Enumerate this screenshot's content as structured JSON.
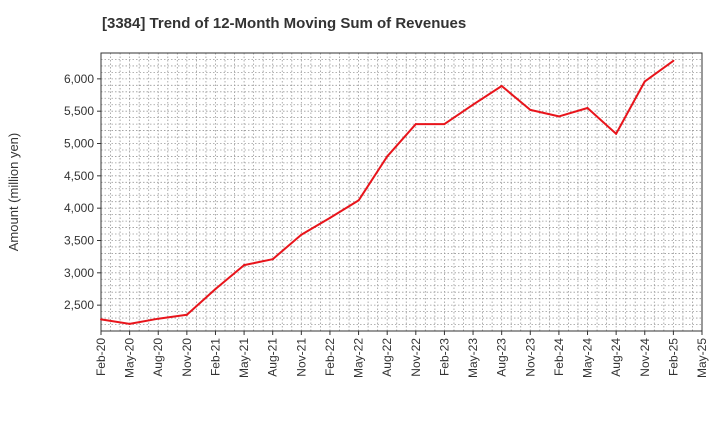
{
  "chart_data": {
    "type": "line",
    "title": "[3384]  Trend of 12-Month Moving Sum of Revenues",
    "xlabel": "",
    "ylabel": "Amount (million yen)",
    "x_ticks": [
      "Feb-20",
      "May-20",
      "Aug-20",
      "Nov-20",
      "Feb-21",
      "May-21",
      "Aug-21",
      "Nov-21",
      "Feb-22",
      "May-22",
      "Aug-22",
      "Nov-22",
      "Feb-23",
      "May-23",
      "Aug-23",
      "Nov-23",
      "Feb-24",
      "May-24",
      "Aug-24",
      "Nov-24",
      "Feb-25",
      "May-25"
    ],
    "y_ticks": [
      2500,
      3000,
      3500,
      4000,
      4500,
      5000,
      5500,
      6000
    ],
    "y_tick_labels": [
      "2,500",
      "3,000",
      "3,500",
      "4,000",
      "4,500",
      "5,000",
      "5,500",
      "6,000"
    ],
    "ylim": [
      2100,
      6400
    ],
    "grid": true,
    "line_color": "#e8141b",
    "series": [
      {
        "x": [
          "Feb-20",
          "May-20",
          "Aug-20",
          "Nov-20",
          "Feb-21",
          "May-21",
          "Aug-21",
          "Nov-21",
          "Feb-22",
          "May-22",
          "Aug-22",
          "Nov-22",
          "Feb-23",
          "May-23",
          "Aug-23",
          "Nov-23",
          "Feb-24",
          "May-24",
          "Aug-24",
          "Nov-24",
          "Feb-25"
        ],
        "values": [
          2280,
          2210,
          2290,
          2350,
          2750,
          3120,
          3210,
          3590,
          3850,
          4120,
          4800,
          5300,
          5300,
          5600,
          5890,
          5520,
          5420,
          5550,
          5150,
          5960,
          6280
        ]
      }
    ]
  }
}
